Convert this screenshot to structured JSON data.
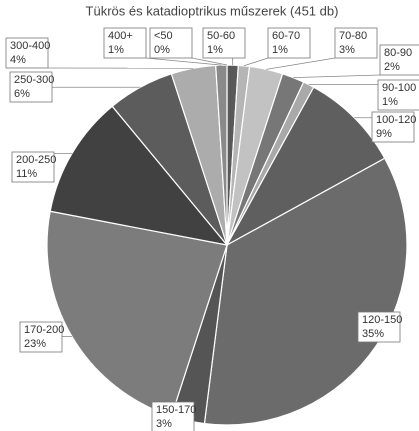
{
  "chart_data": {
    "type": "pie",
    "title": "Tükrös és katadioptrikus műszerek (451 db)",
    "categories": [
      "<50",
      "50-60",
      "60-70",
      "70-80",
      "80-90",
      "90-100",
      "100-120",
      "120-150",
      "150-170",
      "170-200",
      "200-250",
      "250-300",
      "300-400",
      "400+"
    ],
    "values": [
      0,
      1,
      1,
      3,
      2,
      1,
      9,
      35,
      3,
      23,
      11,
      6,
      4,
      1
    ],
    "value_labels": [
      "0%",
      "1%",
      "1%",
      "3%",
      "2%",
      "1%",
      "9%",
      "35%",
      "3%",
      "23%",
      "11%",
      "6%",
      "4%",
      "1%"
    ],
    "colors": [
      "#3a3a3a",
      "#595959",
      "#b5b5b5",
      "#c2c2c2",
      "#777777",
      "#a9a9a9",
      "#5f5f5f",
      "#6b6b6b",
      "#555555",
      "#7c7c7c",
      "#414141",
      "#5c5c5c",
      "#acacac",
      "#8a8a8a"
    ]
  }
}
